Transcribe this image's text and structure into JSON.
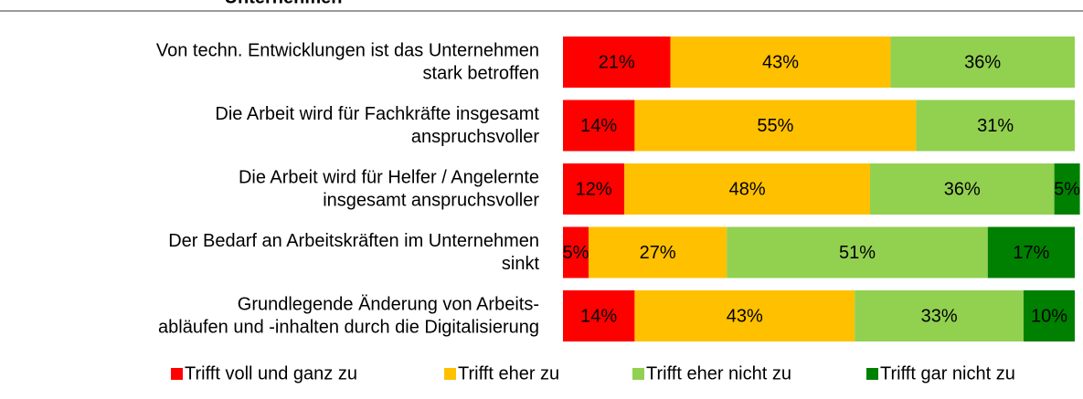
{
  "chart_data": {
    "type": "stacked-bar-horizontal",
    "title": "Unternehmen",
    "categories": [
      [
        "Von techn. Entwicklungen ist das Unternehmen",
        "stark betroffen"
      ],
      [
        "Die Arbeit wird für Fachkräfte insgesamt",
        "anspruchsvoller"
      ],
      [
        "Die Arbeit wird für Helfer / Angelernte",
        "insgesamt anspruchsvoller"
      ],
      [
        "Der Bedarf an Arbeitskräften im Unternehmen",
        "sinkt"
      ],
      [
        "Grundlegende Änderung von Arbeits-",
        "abläufen und -inhalten durch die Digitalisierung"
      ]
    ],
    "series": [
      {
        "name": "Trifft voll und ganz zu",
        "color": "#ff0000",
        "label_color": "#ffffff",
        "values": [
          21,
          14,
          12,
          5,
          14
        ],
        "value_labels": [
          "21%",
          "14%",
          "12%",
          "5%",
          "14%"
        ]
      },
      {
        "name": "Trifft eher zu",
        "color": "#ffc000",
        "label_color": "#000000",
        "values": [
          43,
          55,
          48,
          27,
          43
        ],
        "value_labels": [
          "43%",
          "55%",
          "48%",
          "27%",
          "43%"
        ]
      },
      {
        "name": "Trifft eher nicht zu",
        "color": "#92d050",
        "label_color": "#000000",
        "values": [
          36,
          31,
          36,
          51,
          33
        ],
        "value_labels": [
          "36%",
          "31%",
          "36%",
          "51%",
          "33%"
        ]
      },
      {
        "name": "Trifft gar nicht zu",
        "color": "#008000",
        "label_color": "#ffffff",
        "values": [
          null,
          null,
          5,
          17,
          10
        ],
        "value_labels": [
          null,
          null,
          "5%",
          "17%",
          "10%"
        ]
      }
    ],
    "xlim": [
      0,
      100
    ],
    "legend": "bottom"
  }
}
